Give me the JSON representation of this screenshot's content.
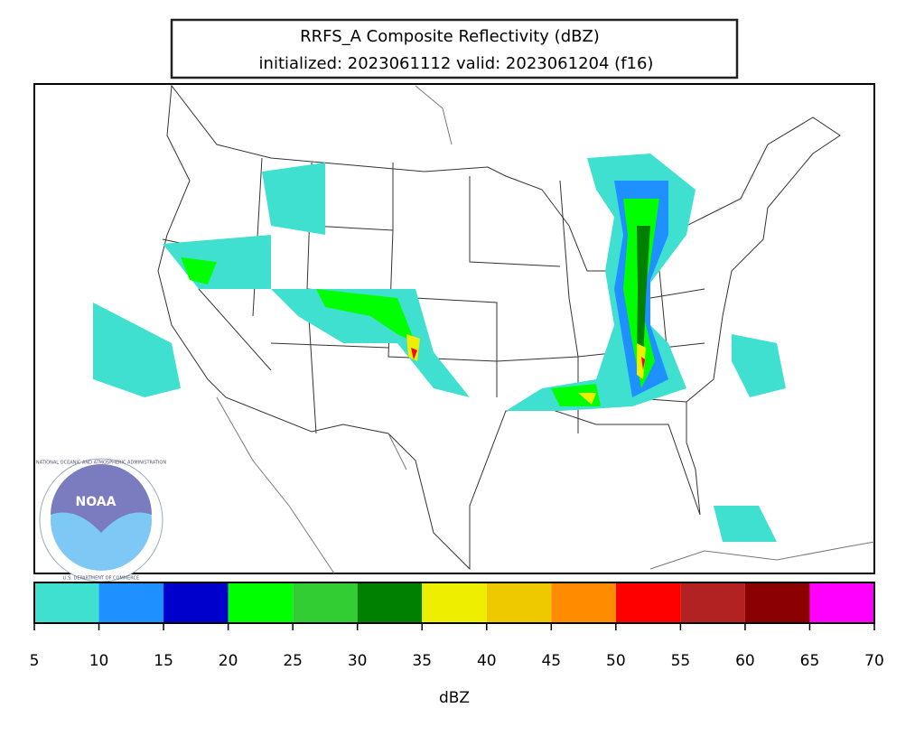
{
  "title": {
    "line1": "RRFS_A Composite Reflectivity (dBZ)",
    "line2": "initialized: 2023061112 valid: 2023061204 (f16)"
  },
  "logo": {
    "name": "NOAA",
    "ring_top": "NATIONAL OCEANIC AND ATMOSPHERIC ADMINISTRATION",
    "ring_bottom": "U.S. DEPARTMENT OF COMMERCE"
  },
  "colorbar": {
    "label": "dBZ",
    "ticks": [
      5,
      10,
      15,
      20,
      25,
      30,
      35,
      40,
      45,
      50,
      55,
      60,
      65,
      70
    ],
    "colors": [
      "#40e0d0",
      "#1e90ff",
      "#0000cd",
      "#00ff00",
      "#32cd32",
      "#008000",
      "#eeee00",
      "#eec900",
      "#ff8c00",
      "#ff0000",
      "#b22222",
      "#8b0000",
      "#ff00ff"
    ]
  }
}
